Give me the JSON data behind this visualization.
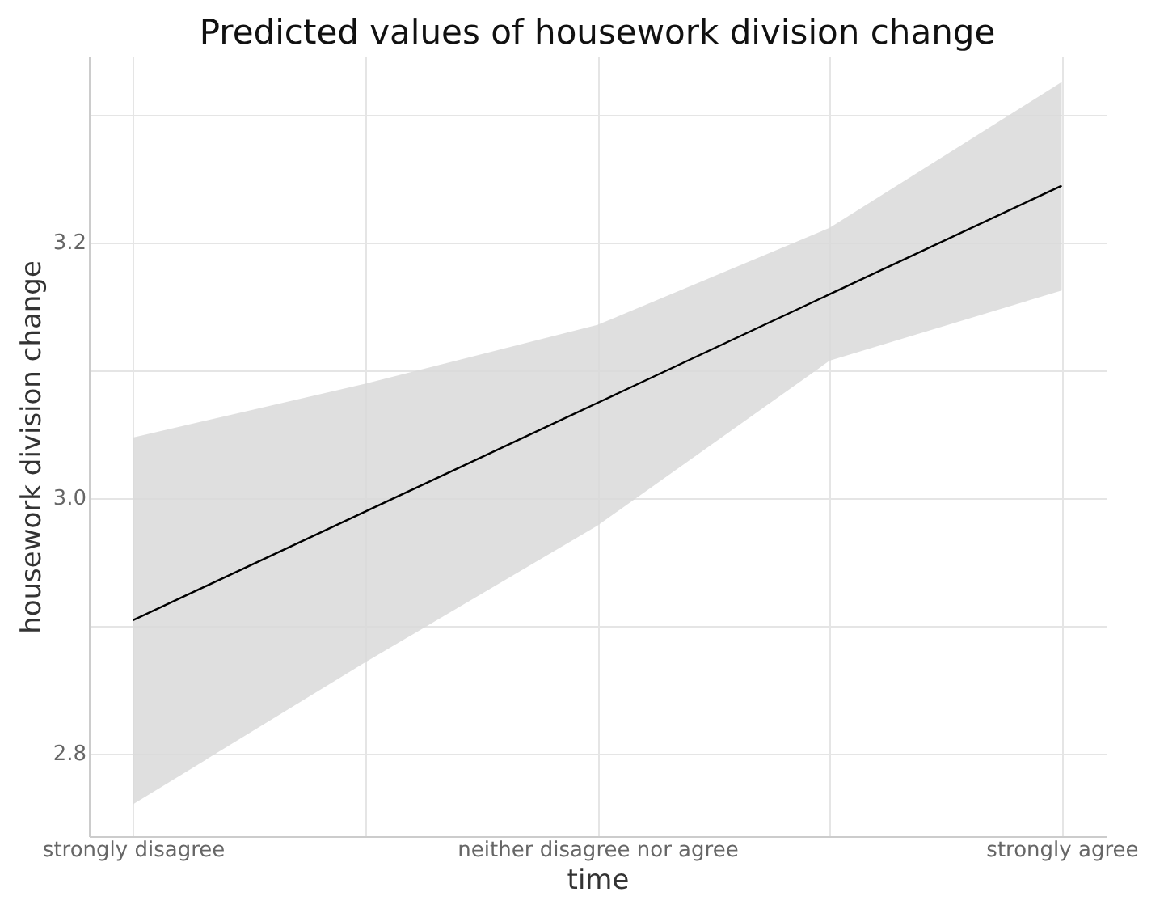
{
  "chart_data": {
    "type": "line",
    "title": "Predicted values of housework division change",
    "xlabel": "time",
    "ylabel": "housework division change",
    "categories": [
      "strongly disagree",
      null,
      "neither disagree nor agree",
      null,
      "strongly agree"
    ],
    "series": [
      {
        "color": "#000000",
        "values": [
          2.904,
          2.989,
          3.074,
          3.159,
          3.244
        ],
        "lower": [
          2.76,
          2.871,
          2.978,
          3.107,
          3.162
        ],
        "upper": [
          3.047,
          3.089,
          3.135,
          3.211,
          3.325
        ]
      }
    ],
    "ylim": [
      2.735,
      3.345
    ],
    "yticks": [
      2.8,
      {
        "value": 2.9,
        "label": null
      },
      {
        "value": 3.0,
        "label": "3.0"
      },
      {
        "value": 3.1,
        "label": null
      },
      3.2,
      {
        "value": 3.3,
        "label": null
      }
    ],
    "grid": true,
    "line_style": "solid"
  }
}
